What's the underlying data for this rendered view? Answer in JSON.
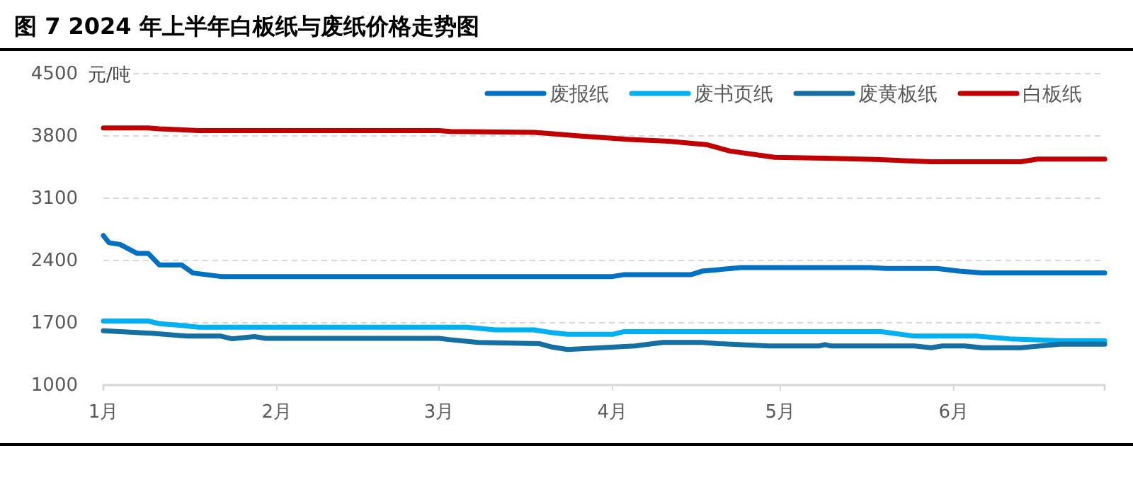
{
  "chart_data": {
    "type": "line",
    "title": "图 7 2024 年上半年白板纸与废纸价格走势图",
    "ylabel": "元/吨",
    "xlim": [
      "2024-01-01",
      "2024-06-28"
    ],
    "xticks": [
      {
        "value": "2024-01-01",
        "label": "1月"
      },
      {
        "value": "2024-02-01",
        "label": "2月"
      },
      {
        "value": "2024-03-01",
        "label": "3月"
      },
      {
        "value": "2024-04-01",
        "label": "4月"
      },
      {
        "value": "2024-05-01",
        "label": "5月"
      },
      {
        "value": "2024-06-01",
        "label": "6月"
      }
    ],
    "ylim": [
      1000,
      4500
    ],
    "yticks": [
      1000,
      1700,
      2400,
      3100,
      3800,
      4500
    ],
    "grid": "y",
    "legend": "top right",
    "marker": "none",
    "line_style": "solid",
    "series": [
      {
        "name": "废报纸",
        "color": "#0070c0",
        "x": [
          "2024-01-01",
          "2024-01-02",
          "2024-01-04",
          "2024-01-07",
          "2024-01-09",
          "2024-01-11",
          "2024-01-15",
          "2024-01-17",
          "2024-01-22",
          "2024-04-01",
          "2024-04-03",
          "2024-04-15",
          "2024-04-17",
          "2024-04-24",
          "2024-05-17",
          "2024-05-20",
          "2024-05-29",
          "2024-06-02",
          "2024-06-06",
          "2024-06-28"
        ],
        "values": [
          2680,
          2600,
          2580,
          2480,
          2480,
          2350,
          2350,
          2260,
          2220,
          2220,
          2240,
          2240,
          2280,
          2320,
          2320,
          2310,
          2310,
          2280,
          2260,
          2260
        ]
      },
      {
        "name": "废书页纸",
        "color": "#00b0f0",
        "x": [
          "2024-01-01",
          "2024-01-09",
          "2024-01-11",
          "2024-01-15",
          "2024-01-18",
          "2024-03-06",
          "2024-03-11",
          "2024-03-18",
          "2024-03-21",
          "2024-03-24",
          "2024-04-01",
          "2024-04-03",
          "2024-05-19",
          "2024-05-25",
          "2024-06-05",
          "2024-06-11",
          "2024-06-20",
          "2024-06-28"
        ],
        "values": [
          1720,
          1720,
          1690,
          1670,
          1650,
          1650,
          1620,
          1620,
          1590,
          1570,
          1570,
          1600,
          1600,
          1550,
          1550,
          1520,
          1500,
          1500
        ]
      },
      {
        "name": "废黄板纸",
        "color": "#156fa0",
        "x": [
          "2024-01-01",
          "2024-01-10",
          "2024-01-16",
          "2024-01-22",
          "2024-01-24",
          "2024-01-28",
          "2024-01-30",
          "2024-03-01",
          "2024-03-03",
          "2024-03-08",
          "2024-03-19",
          "2024-03-21",
          "2024-03-24",
          "2024-04-05",
          "2024-04-10",
          "2024-04-17",
          "2024-04-20",
          "2024-04-29",
          "2024-05-08",
          "2024-05-09",
          "2024-05-10",
          "2024-05-25",
          "2024-05-28",
          "2024-05-30",
          "2024-06-03",
          "2024-06-06",
          "2024-06-13",
          "2024-06-20",
          "2024-06-28"
        ],
        "values": [
          1610,
          1580,
          1550,
          1550,
          1520,
          1545,
          1525,
          1525,
          1510,
          1480,
          1465,
          1430,
          1400,
          1440,
          1480,
          1480,
          1465,
          1440,
          1440,
          1455,
          1440,
          1440,
          1420,
          1440,
          1440,
          1420,
          1420,
          1460,
          1460
        ]
      },
      {
        "name": "白板纸",
        "color": "#c00000",
        "x": [
          "2024-01-01",
          "2024-01-09",
          "2024-01-11",
          "2024-01-18",
          "2024-03-01",
          "2024-03-03",
          "2024-03-18",
          "2024-03-26",
          "2024-04-04",
          "2024-04-11",
          "2024-04-18",
          "2024-04-22",
          "2024-04-30",
          "2024-05-09",
          "2024-05-18",
          "2024-05-28",
          "2024-06-13",
          "2024-06-16",
          "2024-06-28"
        ],
        "values": [
          3890,
          3890,
          3880,
          3860,
          3860,
          3850,
          3840,
          3800,
          3760,
          3740,
          3700,
          3630,
          3560,
          3550,
          3535,
          3510,
          3510,
          3540,
          3540
        ]
      }
    ]
  }
}
